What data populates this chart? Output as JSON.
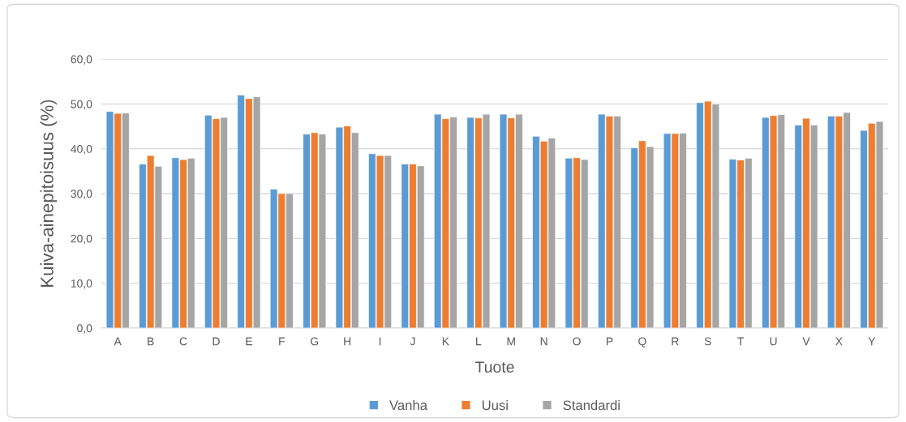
{
  "chart_data": {
    "type": "bar",
    "xlabel": "Tuote",
    "ylabel": "Kuiva-ainepitoisuus (%)",
    "categories": [
      "A",
      "B",
      "C",
      "D",
      "E",
      "F",
      "G",
      "H",
      "I",
      "J",
      "K",
      "L",
      "M",
      "N",
      "O",
      "P",
      "Q",
      "R",
      "S",
      "T",
      "U",
      "V",
      "X",
      "Y"
    ],
    "series": [
      {
        "name": "Vanha",
        "color": "#5b9bd5",
        "values": [
          48.3,
          36.6,
          38.0,
          47.5,
          52.0,
          31.0,
          43.3,
          44.8,
          38.9,
          36.6,
          47.7,
          47.0,
          47.7,
          42.8,
          37.9,
          47.7,
          40.2,
          43.4,
          50.3,
          37.7,
          47.0,
          45.3,
          47.3,
          44.1
        ]
      },
      {
        "name": "Uusi",
        "color": "#ed7d31",
        "values": [
          47.9,
          38.5,
          37.6,
          46.7,
          51.2,
          30.0,
          43.6,
          45.1,
          38.5,
          36.6,
          46.7,
          46.9,
          46.9,
          41.7,
          38.0,
          47.3,
          41.8,
          43.4,
          50.6,
          37.5,
          47.4,
          46.8,
          47.3,
          45.7
        ]
      },
      {
        "name": "Standardi",
        "color": "#a5a5a5",
        "values": [
          48.0,
          36.1,
          37.9,
          47.0,
          51.6,
          30.0,
          43.3,
          43.6,
          38.5,
          36.2,
          47.1,
          47.7,
          47.7,
          42.4,
          37.6,
          47.3,
          40.5,
          43.5,
          50.0,
          37.9,
          47.6,
          45.3,
          48.1,
          46.1
        ]
      }
    ],
    "ylim": [
      0,
      60
    ],
    "yticks": [
      {
        "value": 0,
        "label": "0,0"
      },
      {
        "value": 10,
        "label": "10,0"
      },
      {
        "value": 20,
        "label": "20,0"
      },
      {
        "value": 30,
        "label": "30,0"
      },
      {
        "value": 40,
        "label": "40,0"
      },
      {
        "value": 50,
        "label": "50,0"
      },
      {
        "value": 60,
        "label": "60,0"
      }
    ],
    "grid": "y",
    "legend": "bottom"
  }
}
